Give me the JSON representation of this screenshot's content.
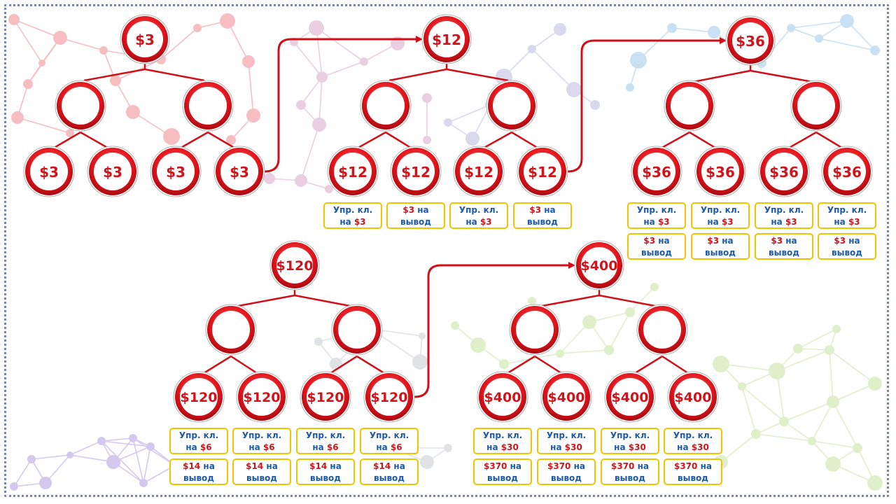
{
  "colors": {
    "ring": "#e0141b",
    "ring_dark": "#b00c12",
    "connector": "#d01018",
    "arrow": "#d01018",
    "box_border": "#f2c300",
    "label_blue": "#1d5aa8",
    "amount_red": "#d0141b",
    "frame": "#6f86b8"
  },
  "label_texts": {
    "manage_line1": "Упр. кл.",
    "manage_line2": "на",
    "withdraw_line1": "на",
    "withdraw_line2": "вывод"
  },
  "trees": [
    {
      "id": "tree-3",
      "root": "$3",
      "children": [
        "",
        ""
      ],
      "leaves": [
        "$3",
        "$3",
        "$3",
        "$3"
      ],
      "boxes": []
    },
    {
      "id": "tree-12",
      "root": "$12",
      "children": [
        "",
        ""
      ],
      "leaves": [
        "$12",
        "$12",
        "$12",
        "$12"
      ],
      "boxes": [
        {
          "type": "manage",
          "amount": "$3"
        },
        {
          "type": "withdraw",
          "amount": "$3"
        },
        {
          "type": "manage",
          "amount": "$3"
        },
        {
          "type": "withdraw",
          "amount": "$3"
        }
      ]
    },
    {
      "id": "tree-36",
      "root": "$36",
      "children": [
        "",
        ""
      ],
      "leaves": [
        "$36",
        "$36",
        "$36",
        "$36"
      ],
      "boxes": [
        {
          "type": "manage",
          "amount": "$3"
        },
        {
          "type": "manage",
          "amount": "$3"
        },
        {
          "type": "manage",
          "amount": "$3"
        },
        {
          "type": "manage",
          "amount": "$3"
        },
        {
          "type": "withdraw",
          "amount": "$3"
        },
        {
          "type": "withdraw",
          "amount": "$3"
        },
        {
          "type": "withdraw",
          "amount": "$3"
        },
        {
          "type": "withdraw",
          "amount": "$3"
        }
      ]
    },
    {
      "id": "tree-120",
      "root": "$120",
      "children": [
        "",
        ""
      ],
      "leaves": [
        "$120",
        "$120",
        "$120",
        "$120"
      ],
      "boxes": [
        {
          "type": "manage",
          "amount": "$6"
        },
        {
          "type": "manage",
          "amount": "$6"
        },
        {
          "type": "manage",
          "amount": "$6"
        },
        {
          "type": "manage",
          "amount": "$6"
        },
        {
          "type": "withdraw",
          "amount": "$14"
        },
        {
          "type": "withdraw",
          "amount": "$14"
        },
        {
          "type": "withdraw",
          "amount": "$14"
        },
        {
          "type": "withdraw",
          "amount": "$14"
        }
      ]
    },
    {
      "id": "tree-400",
      "root": "$400",
      "children": [
        "",
        ""
      ],
      "leaves": [
        "$400",
        "$400",
        "$400",
        "$400"
      ],
      "boxes": [
        {
          "type": "manage",
          "amount": "$30"
        },
        {
          "type": "manage",
          "amount": "$30"
        },
        {
          "type": "manage",
          "amount": "$30"
        },
        {
          "type": "manage",
          "amount": "$30"
        },
        {
          "type": "withdraw",
          "amount": "$370"
        },
        {
          "type": "withdraw",
          "amount": "$370"
        },
        {
          "type": "withdraw",
          "amount": "$370"
        },
        {
          "type": "withdraw",
          "amount": "$370"
        }
      ]
    }
  ],
  "arrows": [
    {
      "from": "tree-3",
      "to": "tree-12"
    },
    {
      "from": "tree-12",
      "to": "tree-36"
    },
    {
      "from": "tree-120",
      "to": "tree-400"
    }
  ]
}
